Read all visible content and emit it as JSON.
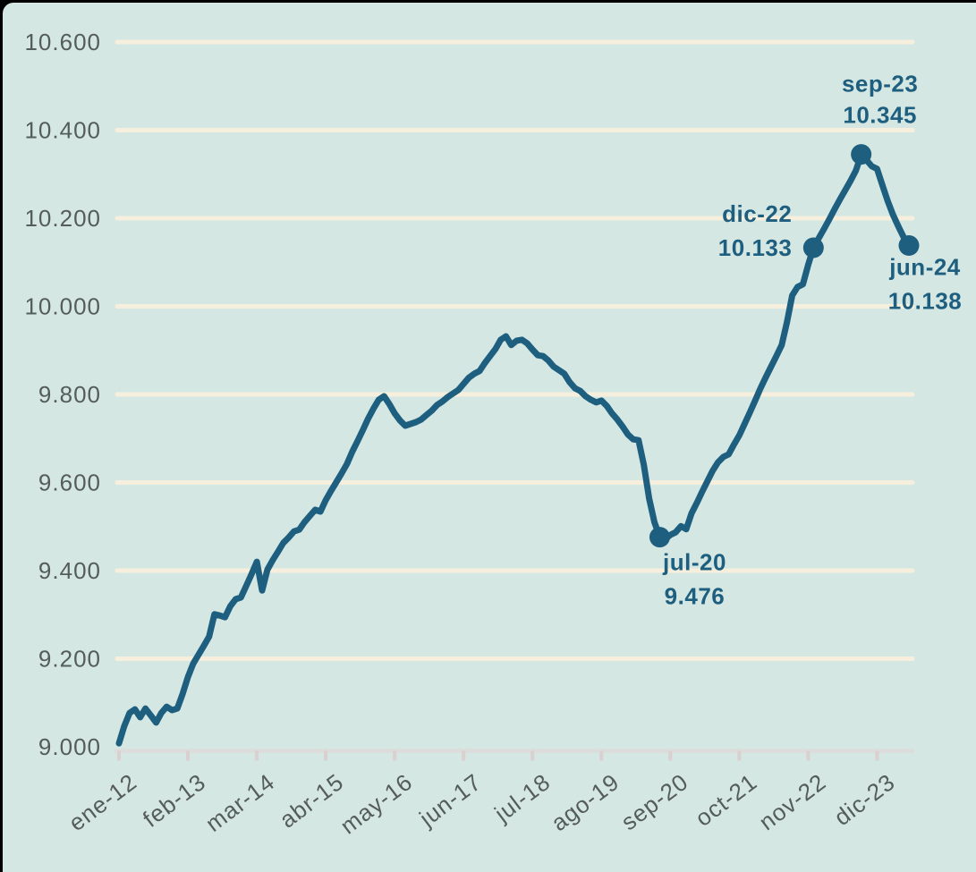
{
  "chart_data": {
    "type": "line",
    "title": "",
    "frequency": "monthly",
    "series_start_label": "ene-12",
    "series_end_label": "jun-24",
    "x_tick_labels": [
      "ene-12",
      "feb-13",
      "mar-14",
      "abr-15",
      "may-16",
      "jun-17",
      "jul-18",
      "ago-19",
      "sep-20",
      "oct-21",
      "nov-22",
      "dic-23"
    ],
    "x_tick_month_indices": [
      0,
      13,
      26,
      39,
      52,
      65,
      78,
      91,
      104,
      117,
      130,
      143
    ],
    "y_tick_labels": [
      "9.000",
      "9.200",
      "9.400",
      "9.600",
      "9.800",
      "10.000",
      "10.200",
      "10.400",
      "10.600"
    ],
    "y_ticks": [
      9000,
      9200,
      9400,
      9600,
      9800,
      10000,
      10200,
      10400,
      10600
    ],
    "ylim": [
      9000,
      10600
    ],
    "grid": "horizontal",
    "legend": "none",
    "values": [
      9008,
      9047,
      9077,
      9085,
      9067,
      9087,
      9071,
      9055,
      9077,
      9091,
      9083,
      9087,
      9120,
      9158,
      9189,
      9209,
      9229,
      9250,
      9301,
      9298,
      9294,
      9319,
      9335,
      9339,
      9365,
      9392,
      9420,
      9355,
      9402,
      9424,
      9443,
      9463,
      9475,
      9489,
      9493,
      9510,
      9524,
      9538,
      9534,
      9560,
      9581,
      9601,
      9621,
      9642,
      9670,
      9694,
      9719,
      9745,
      9768,
      9788,
      9796,
      9778,
      9757,
      9741,
      9729,
      9733,
      9737,
      9743,
      9753,
      9763,
      9776,
      9784,
      9794,
      9802,
      9810,
      9824,
      9838,
      9847,
      9853,
      9871,
      9887,
      9903,
      9924,
      9932,
      9912,
      9922,
      9924,
      9916,
      9902,
      9889,
      9887,
      9877,
      9863,
      9855,
      9847,
      9828,
      9814,
      9808,
      9796,
      9788,
      9782,
      9786,
      9774,
      9757,
      9743,
      9727,
      9709,
      9698,
      9696,
      9640,
      9564,
      9510,
      9476,
      9471,
      9481,
      9487,
      9501,
      9494,
      9530,
      9554,
      9579,
      9603,
      9627,
      9646,
      9658,
      9664,
      9686,
      9707,
      9733,
      9759,
      9786,
      9814,
      9839,
      9863,
      9887,
      9912,
      9964,
      10025,
      10044,
      10050,
      10094,
      10133,
      10155,
      10176,
      10198,
      10221,
      10243,
      10264,
      10285,
      10308,
      10345,
      10332,
      10318,
      10312,
      10275,
      10239,
      10208,
      10182,
      10157,
      10138
    ],
    "annotations": [
      {
        "month_index": 102,
        "label": "jul-20",
        "value": 9476,
        "value_text": "9.476",
        "anchor": "middle",
        "dx": 39,
        "dy_label": 37,
        "dy_value": 75
      },
      {
        "month_index": 131,
        "label": "dic-22",
        "value": 10133,
        "value_text": "10.133",
        "anchor": "end",
        "dx": -24,
        "dy_label": -29,
        "dy_value": 9
      },
      {
        "month_index": 140,
        "label": "sep-23",
        "value": 10345,
        "value_text": "10.345",
        "anchor": "middle",
        "dx": 21,
        "dy_label": -70,
        "dy_value": -35
      },
      {
        "month_index": 149,
        "label": "jun-24",
        "value": 10138,
        "value_text": "10.138",
        "anchor": "middle",
        "dx": 18,
        "dy_label": 33,
        "dy_value": 71
      }
    ],
    "colors": {
      "background": "#d5e7e3",
      "line": "#1e5f7f",
      "marker": "#1e5f7f",
      "gridline": "#f6efdd",
      "axis_line": "#dcdcda",
      "axis_tick": "#d9d0cf",
      "axis_label": "#545c5c",
      "annotation": "#1e5f7f",
      "frame_edge": "#000000"
    }
  }
}
